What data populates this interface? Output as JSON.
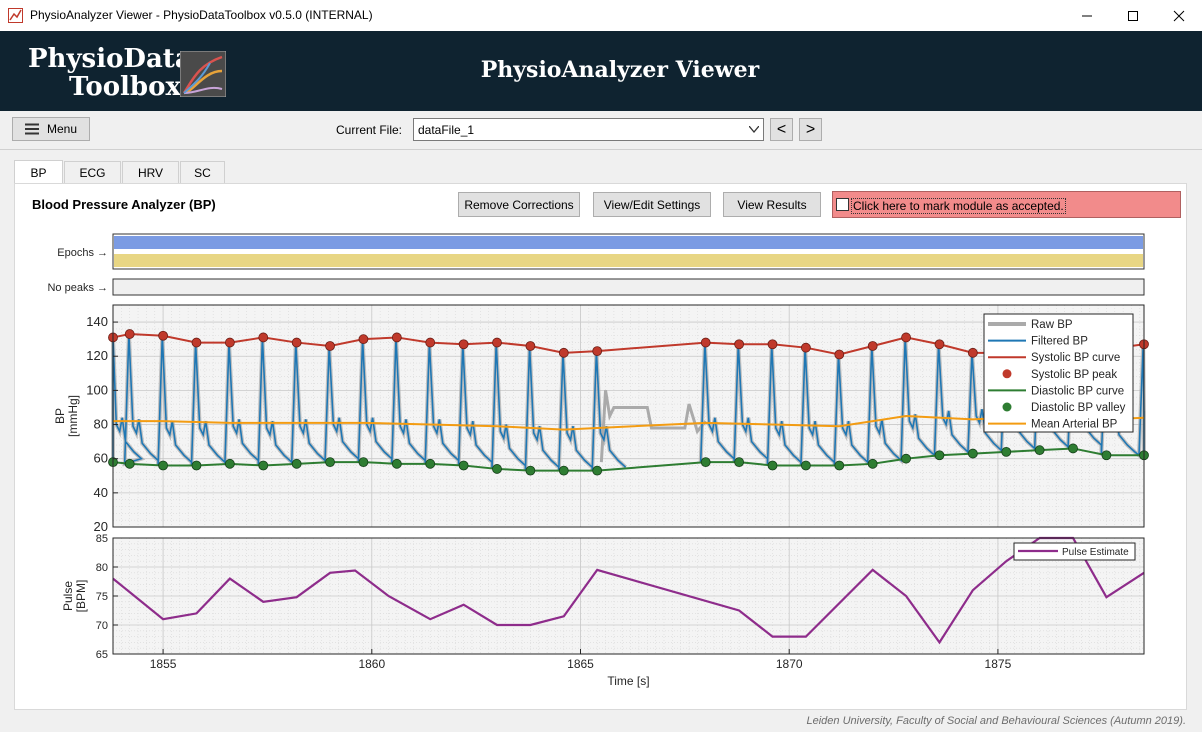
{
  "window": {
    "title": "PhysioAnalyzer Viewer  -  PhysioDataToolbox v0.5.0 (INTERNAL)"
  },
  "header": {
    "logo_line1": "PhysioData",
    "logo_line2": "Toolbox",
    "app_title": "PhysioAnalyzer Viewer"
  },
  "toolbar": {
    "menu_label": "Menu",
    "current_file_label": "Current File:",
    "current_file_value": "dataFile_1",
    "prev_symbol": "<",
    "next_symbol": ">"
  },
  "tabs": [
    "BP",
    "ECG",
    "HRV",
    "SC"
  ],
  "panel": {
    "title": "Blood Pressure Analyzer (BP)",
    "remove_corrections": "Remove Corrections",
    "view_edit_settings": "View/Edit Settings",
    "view_results": "View Results",
    "accept_label": "Click here to mark module as accepted."
  },
  "tracks": {
    "epochs_label": "Epochs →",
    "nopeaks_label": "No peaks →",
    "epoch_colors": [
      "#7b9be3",
      "#e8d684"
    ]
  },
  "footer": "Leiden University, Faculty of Social and Behavioural Sciences (Autumn 2019).",
  "colors": {
    "raw": "#aaaaaa",
    "filtered": "#1f77b4",
    "systolic": "#c0392b",
    "diastolic": "#2e7d32",
    "mean": "#f39c12",
    "pulse": "#8e2c8b"
  },
  "chart_data": [
    {
      "type": "line",
      "xlabel": "",
      "ylabel": "BP [mmHg]",
      "xlim": [
        1853.8,
        1878.5
      ],
      "ylim": [
        20,
        150
      ],
      "yticks": [
        20,
        40,
        60,
        80,
        100,
        120,
        140
      ],
      "grid": true,
      "legend_position": "top-right",
      "series": [
        {
          "name": "Raw BP"
        },
        {
          "name": "Filtered BP"
        },
        {
          "name": "Systolic BP curve"
        },
        {
          "name": "Systolic BP peak"
        },
        {
          "name": "Diastolic BP curve"
        },
        {
          "name": "Diastolic BP valley"
        },
        {
          "name": "Mean Arterial BP"
        }
      ],
      "systolic_peaks": {
        "x": [
          1853.8,
          1854.2,
          1855.0,
          1855.8,
          1856.6,
          1857.4,
          1858.2,
          1859.0,
          1859.8,
          1860.6,
          1861.4,
          1862.2,
          1863.0,
          1863.8,
          1864.6,
          1865.4,
          1868.0,
          1868.8,
          1869.6,
          1870.4,
          1871.2,
          1872.0,
          1872.8,
          1873.6,
          1874.4,
          1875.2,
          1876.0,
          1876.8,
          1877.6,
          1878.5
        ],
        "y": [
          131,
          133,
          132,
          128,
          128,
          131,
          128,
          126,
          130,
          131,
          128,
          127,
          128,
          126,
          122,
          123,
          128,
          127,
          127,
          125,
          121,
          126,
          131,
          127,
          122,
          122,
          124,
          125,
          124,
          127
        ]
      },
      "diastolic_valleys": {
        "x": [
          1853.8,
          1854.2,
          1855.0,
          1855.8,
          1856.6,
          1857.4,
          1858.2,
          1859.0,
          1859.8,
          1860.6,
          1861.4,
          1862.2,
          1863.0,
          1863.8,
          1864.6,
          1865.4,
          1868.0,
          1868.8,
          1869.6,
          1870.4,
          1871.2,
          1872.0,
          1872.8,
          1873.6,
          1874.4,
          1875.2,
          1876.0,
          1876.8,
          1877.6,
          1878.5
        ],
        "y": [
          58,
          57,
          56,
          56,
          57,
          56,
          57,
          58,
          58,
          57,
          57,
          56,
          54,
          53,
          53,
          53,
          58,
          58,
          56,
          56,
          56,
          57,
          60,
          62,
          63,
          64,
          65,
          66,
          62,
          62
        ]
      },
      "mean_arterial": {
        "x": [
          1853.8,
          1855.0,
          1856.6,
          1858.2,
          1859.8,
          1861.4,
          1863.0,
          1864.6,
          1865.4,
          1868.0,
          1869.6,
          1871.2,
          1872.8,
          1874.4,
          1876.0,
          1877.6,
          1878.5
        ],
        "y": [
          82,
          82,
          81,
          81,
          81,
          80,
          79,
          77,
          78,
          81,
          80,
          79,
          85,
          83,
          85,
          83,
          84
        ]
      }
    },
    {
      "type": "line",
      "xlabel": "Time [s]",
      "ylabel": "Pulse [BPM]",
      "xlim": [
        1853.8,
        1878.5
      ],
      "ylim": [
        65,
        85
      ],
      "yticks": [
        65,
        70,
        75,
        80,
        85
      ],
      "xticks": [
        1855,
        1860,
        1865,
        1870,
        1875
      ],
      "grid": true,
      "legend_position": "top-right",
      "series": [
        {
          "name": "Pulse Estimate",
          "x": [
            1853.8,
            1855.0,
            1855.8,
            1856.6,
            1857.4,
            1858.2,
            1859.0,
            1859.6,
            1860.4,
            1861.4,
            1862.2,
            1863.0,
            1863.8,
            1864.6,
            1865.4,
            1868.8,
            1869.6,
            1870.4,
            1872.0,
            1872.8,
            1873.6,
            1874.4,
            1875.2,
            1876.0,
            1876.8,
            1877.6,
            1878.5
          ],
          "y": [
            78,
            71,
            72,
            78,
            74,
            74.8,
            79,
            79.4,
            75,
            71,
            73.5,
            70,
            70,
            71.5,
            79.5,
            72.5,
            68,
            68,
            79.5,
            75,
            67,
            76,
            81,
            85,
            85,
            74.8,
            79
          ]
        }
      ]
    }
  ]
}
